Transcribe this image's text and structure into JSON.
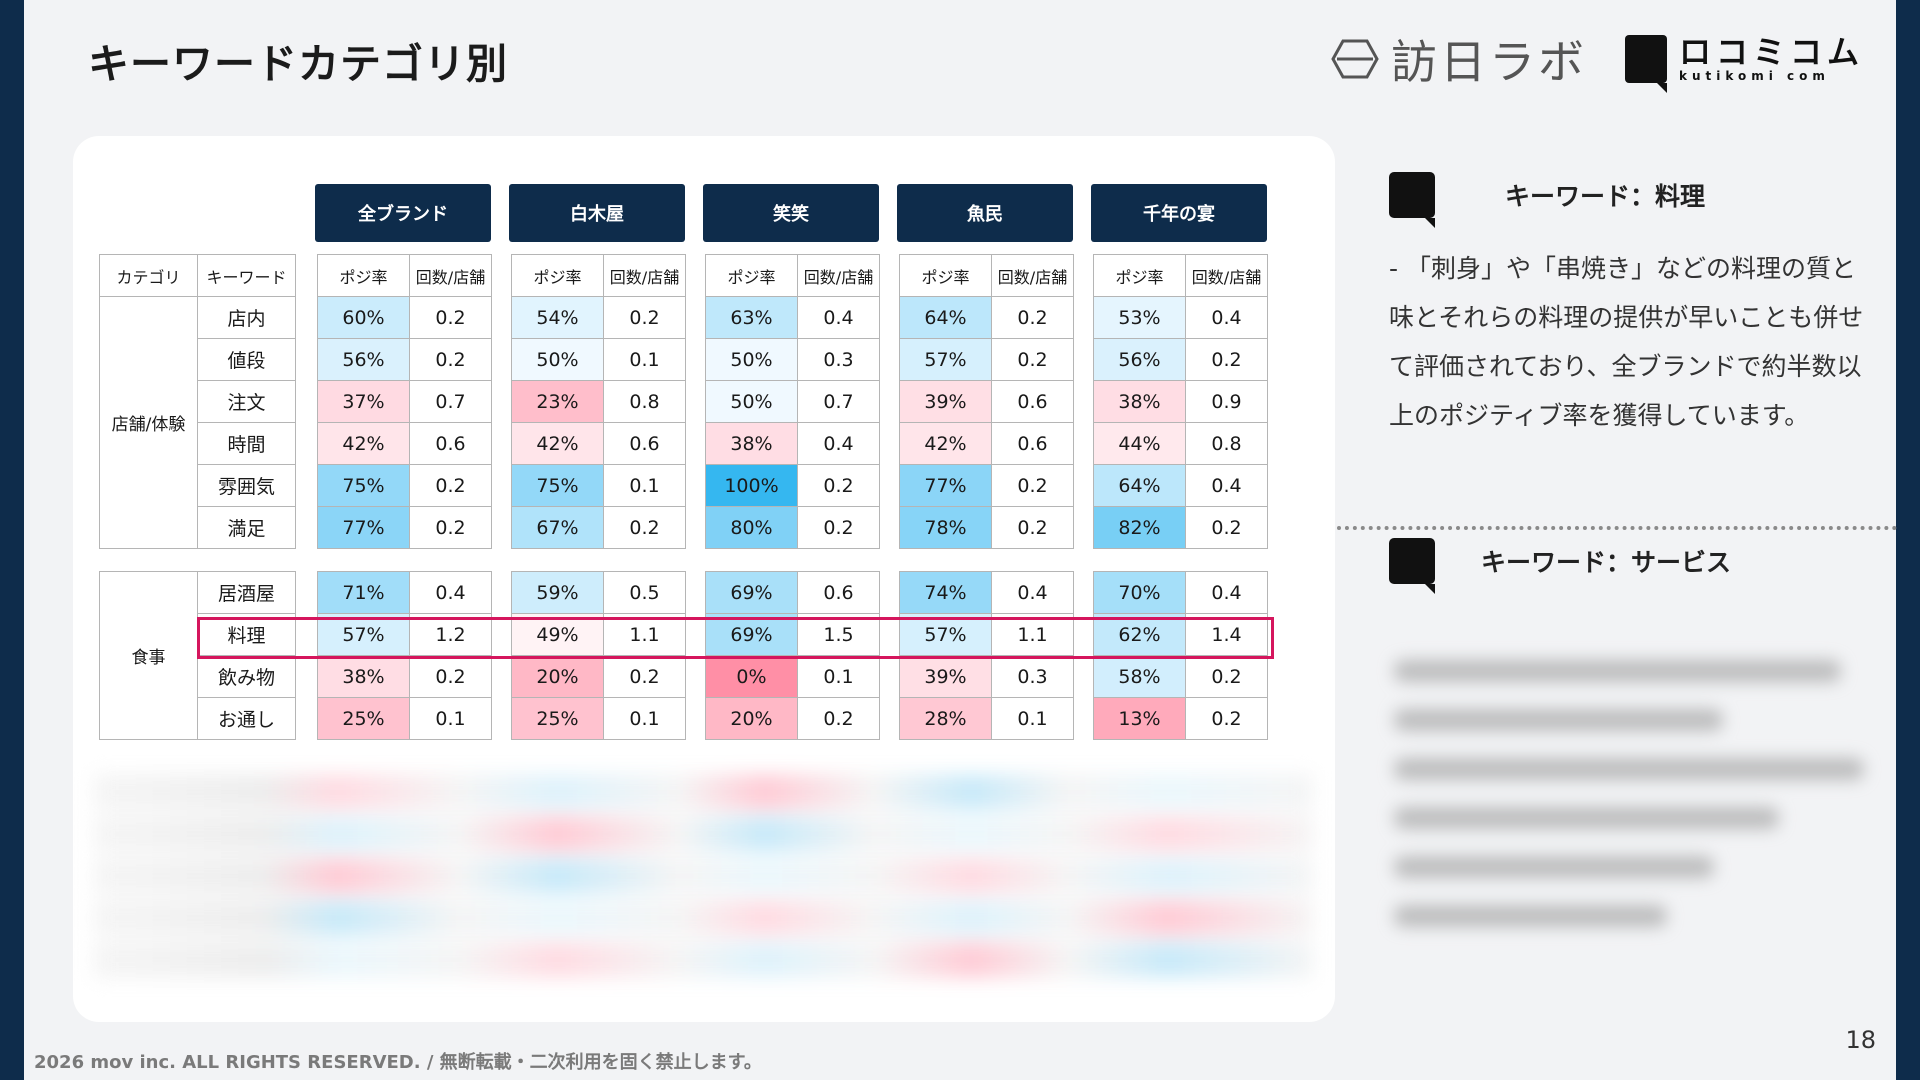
{
  "title": "キーワードカテゴリ別",
  "logos": {
    "logo1_text": "訪日ラボ",
    "logo2_text": "ロコミコム",
    "logo2_sub": "kutikomi com"
  },
  "brands": [
    "全ブランド",
    "白木屋",
    "笑笑",
    "魚民",
    "千年の宴"
  ],
  "headers": {
    "category": "カテゴリ",
    "keyword": "キーワード",
    "posi": "ポジ率",
    "count": "回数/店舗"
  },
  "groups": [
    {
      "category": "店舗/体験",
      "rows": [
        {
          "keyword": "店内",
          "values": [
            [
              "60%",
              "0.2"
            ],
            [
              "54%",
              "0.2"
            ],
            [
              "63%",
              "0.4"
            ],
            [
              "64%",
              "0.2"
            ],
            [
              "53%",
              "0.4"
            ]
          ]
        },
        {
          "keyword": "値段",
          "values": [
            [
              "56%",
              "0.2"
            ],
            [
              "50%",
              "0.1"
            ],
            [
              "50%",
              "0.3"
            ],
            [
              "57%",
              "0.2"
            ],
            [
              "56%",
              "0.2"
            ]
          ]
        },
        {
          "keyword": "注文",
          "values": [
            [
              "37%",
              "0.7"
            ],
            [
              "23%",
              "0.8"
            ],
            [
              "50%",
              "0.7"
            ],
            [
              "39%",
              "0.6"
            ],
            [
              "38%",
              "0.9"
            ]
          ]
        },
        {
          "keyword": "時間",
          "values": [
            [
              "42%",
              "0.6"
            ],
            [
              "42%",
              "0.6"
            ],
            [
              "38%",
              "0.4"
            ],
            [
              "42%",
              "0.6"
            ],
            [
              "44%",
              "0.8"
            ]
          ]
        },
        {
          "keyword": "雰囲気",
          "values": [
            [
              "75%",
              "0.2"
            ],
            [
              "75%",
              "0.1"
            ],
            [
              "100%",
              "0.2"
            ],
            [
              "77%",
              "0.2"
            ],
            [
              "64%",
              "0.4"
            ]
          ]
        },
        {
          "keyword": "満足",
          "values": [
            [
              "77%",
              "0.2"
            ],
            [
              "67%",
              "0.2"
            ],
            [
              "80%",
              "0.2"
            ],
            [
              "78%",
              "0.2"
            ],
            [
              "82%",
              "0.2"
            ]
          ]
        }
      ]
    },
    {
      "category": "食事",
      "rows": [
        {
          "keyword": "居酒屋",
          "values": [
            [
              "71%",
              "0.4"
            ],
            [
              "59%",
              "0.5"
            ],
            [
              "69%",
              "0.6"
            ],
            [
              "74%",
              "0.4"
            ],
            [
              "70%",
              "0.4"
            ]
          ]
        },
        {
          "keyword": "料理",
          "values": [
            [
              "57%",
              "1.2"
            ],
            [
              "49%",
              "1.1"
            ],
            [
              "69%",
              "1.5"
            ],
            [
              "57%",
              "1.1"
            ],
            [
              "62%",
              "1.4"
            ]
          ]
        },
        {
          "keyword": "飲み物",
          "values": [
            [
              "38%",
              "0.2"
            ],
            [
              "20%",
              "0.2"
            ],
            [
              "0%",
              "0.1"
            ],
            [
              "39%",
              "0.3"
            ],
            [
              "58%",
              "0.2"
            ]
          ]
        },
        {
          "keyword": "お通し",
          "values": [
            [
              "25%",
              "0.1"
            ],
            [
              "25%",
              "0.1"
            ],
            [
              "20%",
              "0.2"
            ],
            [
              "28%",
              "0.1"
            ],
            [
              "13%",
              "0.2"
            ]
          ]
        }
      ]
    }
  ],
  "highlighted_keyword": "料理",
  "colors": {
    "navy": "#0e2c4b",
    "highlight": "#d5165d",
    "positive": "#35b7f0",
    "negative": "#ff8fa6"
  },
  "right_panel": {
    "kw1_title": "キーワード：料理",
    "kw1_text": "- 「刺身」や「串焼き」などの料理の質と味とそれらの料理の提供が早いことも併せて評価されており、全ブランドで約半数以上のポジティブ率を獲得しています。",
    "kw2_title": "キーワード：サービス"
  },
  "footer": "2026 mov inc. ALL RIGHTS RESERVED. / 無断転載・二次利用を固く禁止します。",
  "page_number": "18"
}
